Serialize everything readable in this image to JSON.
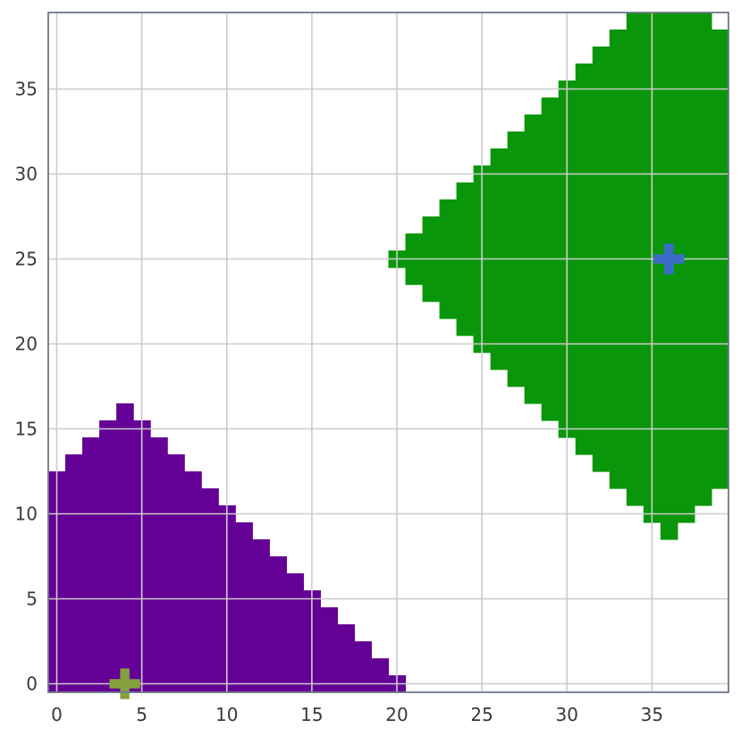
{
  "chart_data": {
    "type": "heatmap",
    "title": "",
    "xlabel": "",
    "ylabel": "",
    "xlim": [
      -0.5,
      39.5
    ],
    "ylim": [
      -0.5,
      39.5
    ],
    "xticks": [
      0,
      5,
      10,
      15,
      20,
      25,
      30,
      35
    ],
    "yticks": [
      0,
      5,
      10,
      15,
      20,
      25,
      30,
      35
    ],
    "grid": true,
    "origin": "lower",
    "colors": {
      "background": "#ffffff",
      "grid": "#cccccc",
      "spine": "#6e7a8a",
      "region_a": "#640096",
      "region_b": "#0a960a",
      "marker_a": "#86a040",
      "marker_b": "#3a6cc8"
    },
    "regions": [
      {
        "color_key": "region_a",
        "shape": "diamond",
        "center": [
          4,
          0
        ],
        "radius": 16,
        "clip_x": [
          0,
          39
        ],
        "clip_y": [
          0,
          39
        ]
      },
      {
        "color_key": "region_b",
        "shape": "diamond",
        "center": [
          36,
          25
        ],
        "radius": 16,
        "clip_x": [
          0,
          39
        ],
        "clip_y": [
          0,
          39
        ]
      }
    ],
    "markers": [
      {
        "symbol": "plus",
        "x": 4,
        "y": 0,
        "color_key": "marker_a"
      },
      {
        "symbol": "plus",
        "x": 36,
        "y": 25,
        "color_key": "marker_b"
      }
    ]
  }
}
